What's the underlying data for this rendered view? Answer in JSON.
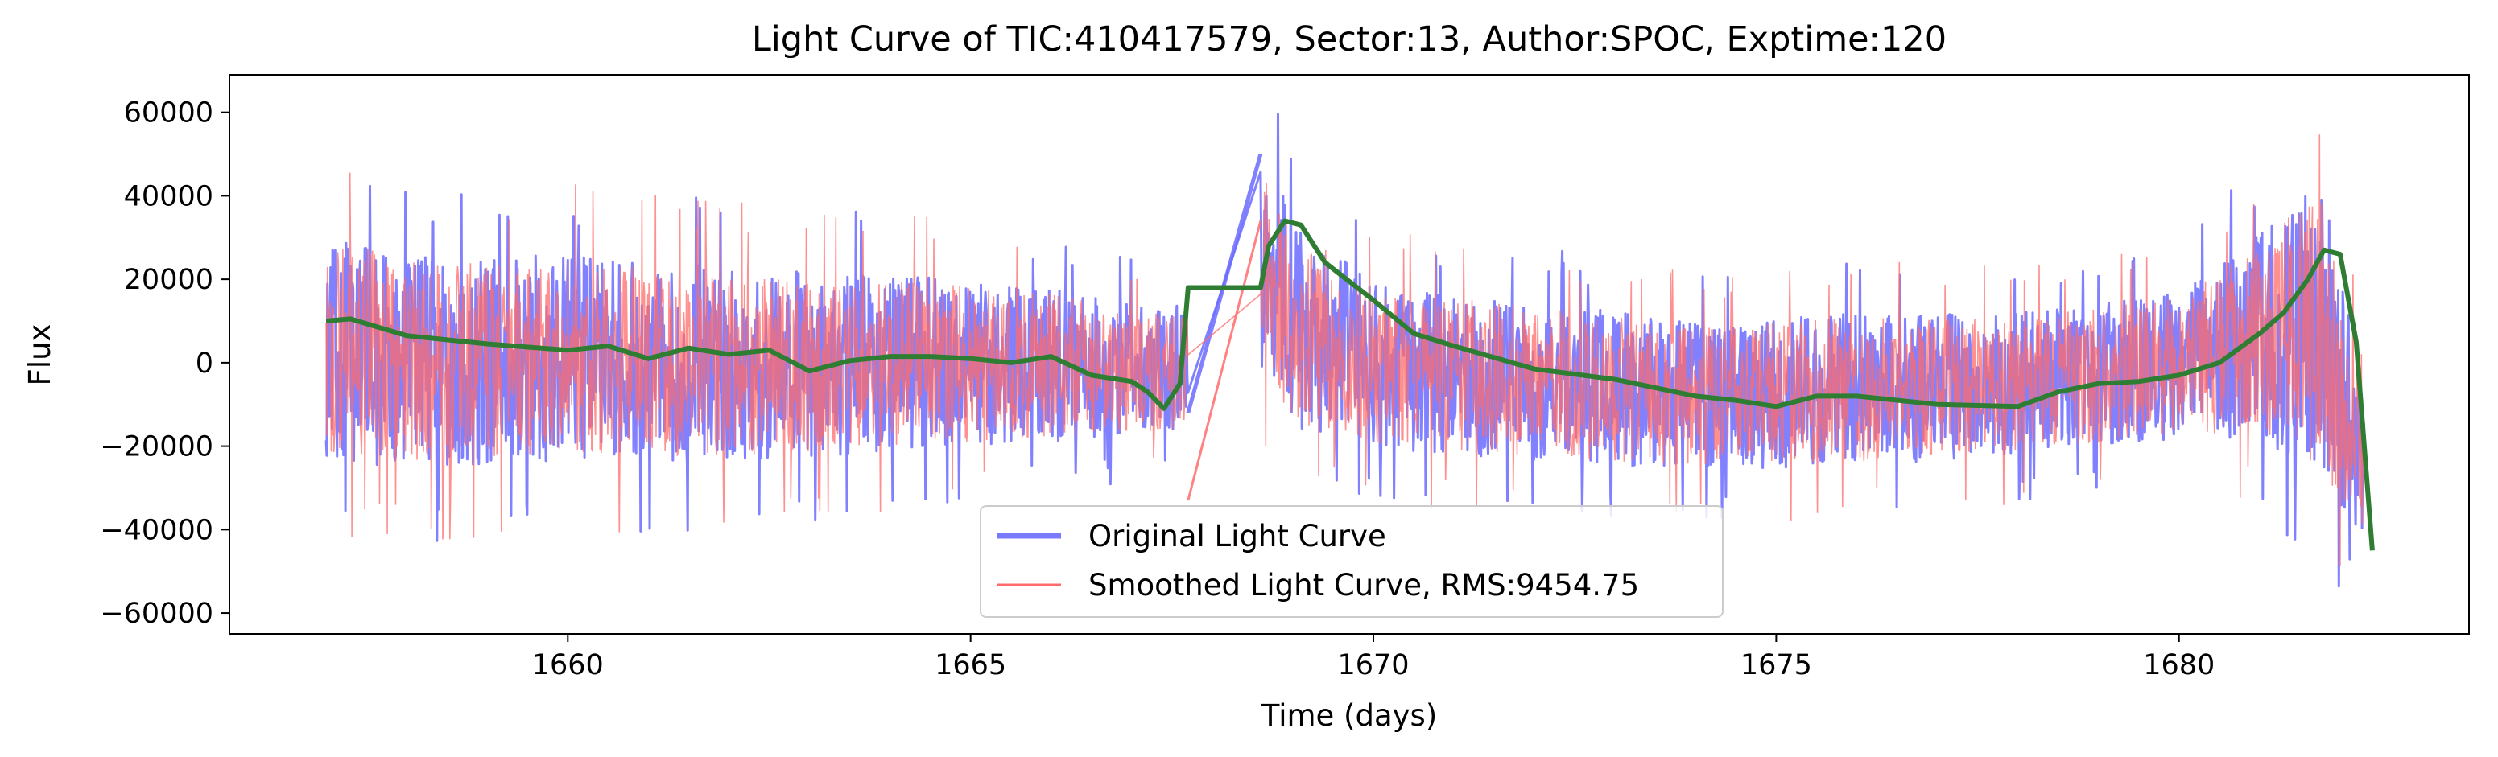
{
  "chart_data": {
    "type": "line",
    "title": "Light Curve of TIC:410417579, Sector:13, Author:SPOC, Exptime:120",
    "xlabel": "Time (days)",
    "ylabel": "Flux",
    "xlim": [
      1655.8,
      1683.6
    ],
    "ylim": [
      -65000,
      69000
    ],
    "xticks": [
      1660,
      1665,
      1670,
      1675,
      1680
    ],
    "yticks": [
      -60000,
      -40000,
      -20000,
      0,
      20000,
      40000,
      60000
    ],
    "grid": false,
    "legend_location": "lower center",
    "colors": {
      "original": "#6b6bff",
      "smoothed": "#ff6b6b",
      "trend": "#2e7d32"
    },
    "series": [
      {
        "name": "Original Light Curve",
        "style": "noisy light curve, gap 1667.7-1668.6",
        "x_range": [
          1657.0,
          1682.3
        ],
        "gap": [
          1667.7,
          1668.6
        ],
        "envelope": {
          "x": [
            1657.0,
            1658.0,
            1660.0,
            1662.0,
            1664.0,
            1666.0,
            1667.5,
            1668.6,
            1669.0,
            1670.0,
            1672.0,
            1674.0,
            1676.0,
            1678.0,
            1680.0,
            1681.0,
            1681.8,
            1682.3
          ],
          "upper": [
            38000,
            30000,
            30000,
            27000,
            25000,
            21000,
            15000,
            55000,
            40000,
            22000,
            18000,
            13000,
            15000,
            15000,
            20000,
            35000,
            50000,
            -5000
          ],
          "lower": [
            -28000,
            -30000,
            -28000,
            -28000,
            -25000,
            -22000,
            -20000,
            -5000,
            -20000,
            -24000,
            -27000,
            -29000,
            -28000,
            -25000,
            -22000,
            -22000,
            -35000,
            -45000
          ]
        }
      },
      {
        "name": "Smoothed Light Curve, RMS:9454.75",
        "style": "thin noisy light curve"
      },
      {
        "name": "",
        "style": "smooth trend line",
        "x": [
          1657.0,
          1657.3,
          1658.0,
          1659.0,
          1660.0,
          1660.5,
          1661.0,
          1661.5,
          1662.0,
          1662.5,
          1663.0,
          1663.5,
          1664.0,
          1664.5,
          1665.0,
          1665.5,
          1666.0,
          1666.5,
          1667.0,
          1667.2,
          1667.4,
          1667.6,
          1667.7,
          1668.6,
          1668.7,
          1668.9,
          1669.1,
          1669.4,
          1670.0,
          1670.5,
          1671.0,
          1672.0,
          1673.0,
          1674.0,
          1674.5,
          1675.0,
          1675.5,
          1676.0,
          1677.0,
          1678.0,
          1678.5,
          1679.0,
          1679.5,
          1680.0,
          1680.5,
          1681.0,
          1681.3,
          1681.6,
          1681.8,
          1682.0,
          1682.2,
          1682.3,
          1682.4
        ],
        "y": [
          10000,
          10500,
          6500,
          4500,
          3000,
          4000,
          1000,
          3500,
          2000,
          3000,
          -2000,
          500,
          1500,
          1500,
          1000,
          0,
          1500,
          -3000,
          -4500,
          -7000,
          -11000,
          -5000,
          18000,
          18000,
          28000,
          34000,
          33000,
          24000,
          15000,
          7000,
          4000,
          -1500,
          -4000,
          -8000,
          -9000,
          -10500,
          -8000,
          -8000,
          -10000,
          -10500,
          -7000,
          -5000,
          -4500,
          -3000,
          0,
          7000,
          12000,
          20000,
          27000,
          26000,
          5000,
          -20000,
          -45000
        ]
      }
    ]
  }
}
